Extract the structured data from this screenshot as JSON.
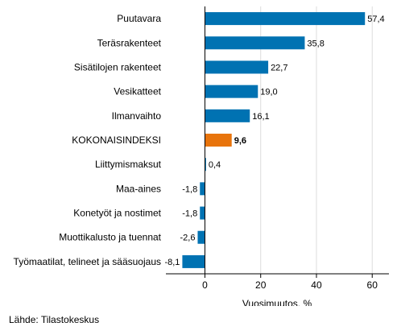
{
  "chart_data": {
    "type": "bar",
    "orientation": "horizontal",
    "categories": [
      "Puutavara",
      "Teräsrakenteet",
      "Sisätilojen rakenteet",
      "Vesikatteet",
      "Ilmanvaihto",
      "KOKONAISINDEKSI",
      "Liittymismaksut",
      "Maa-aines",
      "Konetyöt ja nostimet",
      "Muottikalusto ja tuennat",
      "Työmaatilat, telineet ja sääsuojaus"
    ],
    "values": [
      57.4,
      35.8,
      22.7,
      19.0,
      16.1,
      9.6,
      0.4,
      -1.8,
      -1.8,
      -2.6,
      -8.1
    ],
    "value_labels": [
      "57,4",
      "35,8",
      "22,7",
      "19,0",
      "16,1",
      "9,6",
      "0,4",
      "-1,8",
      "-1,8",
      "-2,6",
      "-8,1"
    ],
    "highlight_category": "KOKONAISINDEKSI",
    "xlabel": "Vuosimuutos, %",
    "xlim": [
      -14,
      66
    ],
    "xticks": [
      0,
      20,
      40,
      60
    ],
    "grid": true,
    "colors": {
      "bar": "#0072b2",
      "highlight": "#e8740c",
      "grid": "#dcdcdc",
      "axis": "#000000"
    }
  },
  "footer": {
    "source": "Lähde: Tilastokeskus"
  }
}
